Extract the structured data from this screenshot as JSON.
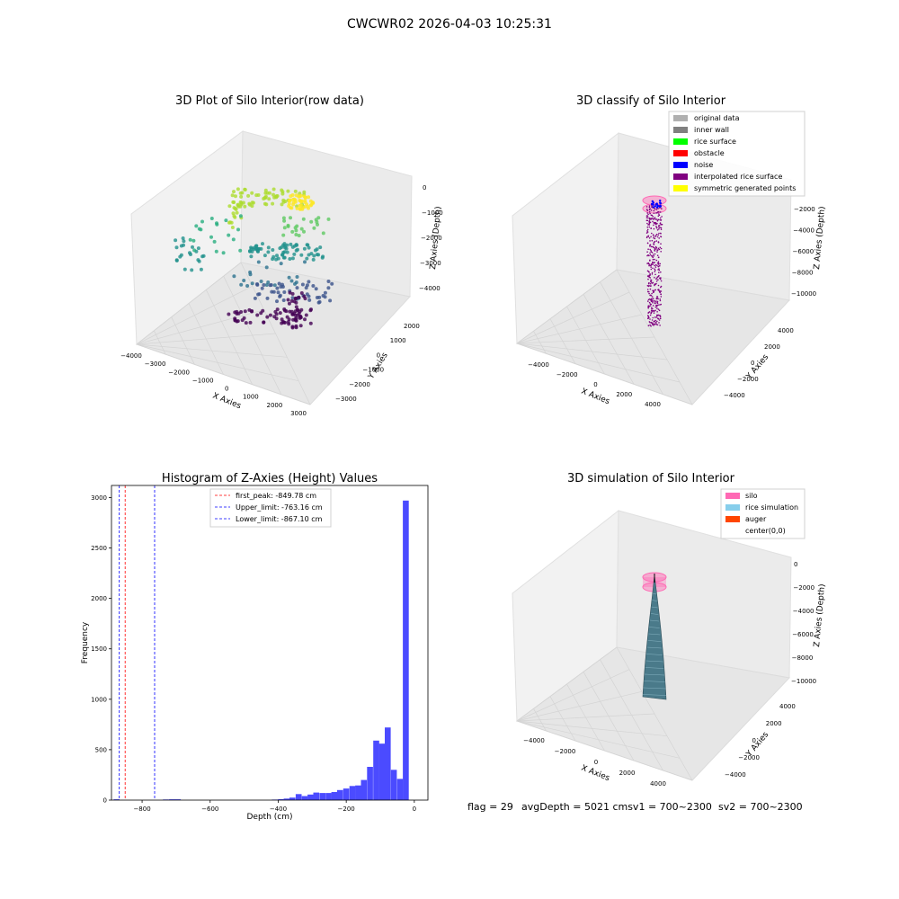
{
  "suptitle": "CWCWR02 2026-04-03 10:25:31",
  "footer": {
    "flag": "flag = 29",
    "avg": "avgDepth = 5021 cmsv1 = 700~2300",
    "sv2": "sv2 = 700~2300"
  },
  "chart_data": [
    {
      "type": "scatter",
      "subtype": "3d-scatter",
      "title": "3D Plot of Silo Interior(row data)",
      "xlabel": "X Axies",
      "ylabel": "Y Axies",
      "zlabel": "Z Axies (Depth)",
      "xticks": [
        "−4000",
        "−3000",
        "−2000",
        "−1000",
        "0",
        "1000",
        "2000",
        "3000"
      ],
      "yticks": [
        "2000",
        "1000",
        "0",
        "−1000",
        "−2000",
        "−3000"
      ],
      "zticks": [
        "0",
        "−1000",
        "−2000",
        "−3000",
        "−4000"
      ],
      "colormap": "viridis"
    },
    {
      "type": "scatter",
      "subtype": "3d-scatter",
      "title": "3D classify of Silo Interior",
      "xlabel": "X Axies",
      "ylabel": "Y Axies",
      "zlabel": "Z Axies (Depth)",
      "xticks": [
        "−4000",
        "−2000",
        "0",
        "2000",
        "4000"
      ],
      "yticks": [
        "4000",
        "2000",
        "0",
        "−2000",
        "−4000"
      ],
      "zticks": [
        "−2000",
        "−4000",
        "−6000",
        "−8000",
        "−10000"
      ],
      "legend_position": "top-right",
      "legend": [
        {
          "label": "original data",
          "color": "#b0b0b0"
        },
        {
          "label": "inner wall",
          "color": "#808080"
        },
        {
          "label": "rice surface",
          "color": "#00ff00"
        },
        {
          "label": "obstacle",
          "color": "#ff0000"
        },
        {
          "label": "noise",
          "color": "#0000ff"
        },
        {
          "label": "interpolated rice surface",
          "color": "#800080"
        },
        {
          "label": "symmetric generated points",
          "color": "#ffff00"
        }
      ]
    },
    {
      "type": "bar",
      "subtype": "histogram",
      "title": "Histogram of Z-Axies (Height) Values",
      "xlabel": "Depth (cm)",
      "ylabel": "Frequency",
      "xlim": [
        -890,
        40
      ],
      "ylim": [
        0,
        3120
      ],
      "xticks": [
        -800,
        -600,
        -400,
        -200,
        0
      ],
      "xtick_labels": [
        "−800",
        "−600",
        "−400",
        "−200",
        "0"
      ],
      "yticks": [
        0,
        500,
        1000,
        1500,
        2000,
        2500,
        3000
      ],
      "bar_color": "#4b4bff",
      "bin_width": 17.5,
      "bins": [
        {
          "x": -875,
          "count": 8
        },
        {
          "x": -730,
          "count": 6
        },
        {
          "x": -712,
          "count": 8
        },
        {
          "x": -695,
          "count": 8
        },
        {
          "x": -410,
          "count": 5
        },
        {
          "x": -392,
          "count": 10
        },
        {
          "x": -375,
          "count": 15
        },
        {
          "x": -358,
          "count": 25
        },
        {
          "x": -340,
          "count": 60
        },
        {
          "x": -322,
          "count": 40
        },
        {
          "x": -305,
          "count": 55
        },
        {
          "x": -288,
          "count": 75
        },
        {
          "x": -270,
          "count": 70
        },
        {
          "x": -252,
          "count": 70
        },
        {
          "x": -235,
          "count": 80
        },
        {
          "x": -218,
          "count": 100
        },
        {
          "x": -200,
          "count": 115
        },
        {
          "x": -182,
          "count": 140
        },
        {
          "x": -165,
          "count": 145
        },
        {
          "x": -148,
          "count": 200
        },
        {
          "x": -130,
          "count": 330
        },
        {
          "x": -112,
          "count": 590
        },
        {
          "x": -95,
          "count": 560
        },
        {
          "x": -78,
          "count": 720
        },
        {
          "x": -60,
          "count": 300
        },
        {
          "x": -42,
          "count": 210
        },
        {
          "x": -25,
          "count": 2970
        }
      ],
      "vlines": [
        {
          "label": "first_peak: -849.78 cm",
          "x": -849.78,
          "color": "#ff0000"
        },
        {
          "label": "Upper_limit: -763.16 cm",
          "x": -763.16,
          "color": "#0000ff"
        },
        {
          "label": "Lower_limit: -867.10 cm",
          "x": -867.1,
          "color": "#0000ff"
        }
      ],
      "legend_position": "top-center"
    },
    {
      "type": "area",
      "subtype": "3d-surface",
      "title": "3D simulation of Silo Interior",
      "xlabel": "X Axies",
      "ylabel": "Y Axies",
      "zlabel": "Z Axies (Depth)",
      "xticks": [
        "−4000",
        "−2000",
        "0",
        "2000",
        "4000"
      ],
      "yticks": [
        "4000",
        "2000",
        "0",
        "−2000",
        "−4000"
      ],
      "zticks": [
        "0",
        "−2000",
        "−4000",
        "−6000",
        "−8000",
        "−10000"
      ],
      "legend_position": "top-right",
      "legend": [
        {
          "label": "silo",
          "color": "#ff69b4"
        },
        {
          "label": "rice simulation",
          "color": "#87ceeb"
        },
        {
          "label": "auger",
          "color": "#ff4500"
        },
        {
          "label": "center(0,0)",
          "color": "#ffffff"
        }
      ]
    }
  ]
}
